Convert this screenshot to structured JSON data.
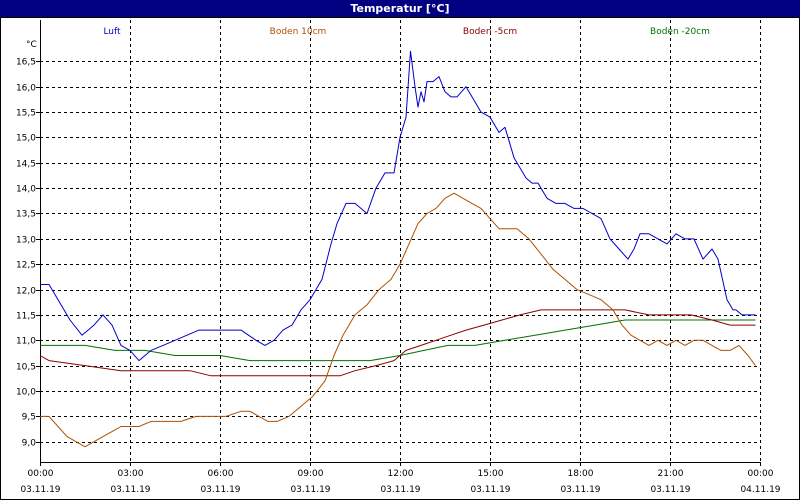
{
  "chart_data": {
    "type": "line",
    "title": "Temperatur [°C]",
    "ylabel": "°C",
    "grid": true,
    "legend": "top",
    "ylim": [
      8.6,
      17.0
    ],
    "xlim_hours": [
      0,
      24
    ],
    "y_ticks": [
      "9,0",
      "9,5",
      "10,0",
      "10,5",
      "11,0",
      "11,5",
      "12,0",
      "12,5",
      "13,0",
      "13,5",
      "14,0",
      "14,5",
      "15,0",
      "15,5",
      "16,0",
      "16,5"
    ],
    "y_tick_values": [
      9.0,
      9.5,
      10.0,
      10.5,
      11.0,
      11.5,
      12.0,
      12.5,
      13.0,
      13.5,
      14.0,
      14.5,
      15.0,
      15.5,
      16.0,
      16.5
    ],
    "x_ticks": [
      {
        "time": "00:00",
        "date": "03.11.19"
      },
      {
        "time": "03:00",
        "date": "03.11.19"
      },
      {
        "time": "06:00",
        "date": "03.11.19"
      },
      {
        "time": "09:00",
        "date": "03.11.19"
      },
      {
        "time": "12:00",
        "date": "03.11.19"
      },
      {
        "time": "15:00",
        "date": "03.11.19"
      },
      {
        "time": "18:00",
        "date": "03.11.19"
      },
      {
        "time": "21:00",
        "date": "03.11.19"
      },
      {
        "time": "00:00",
        "date": "04.11.19"
      }
    ],
    "series": [
      {
        "name": "Luft",
        "color": "#0000cc",
        "x": [
          0,
          0.3,
          0.7,
          1.0,
          1.4,
          1.8,
          2.1,
          2.4,
          2.7,
          3.0,
          3.3,
          3.7,
          4.1,
          4.5,
          4.9,
          5.3,
          5.7,
          6.2,
          6.7,
          7.2,
          7.5,
          7.8,
          8.1,
          8.4,
          8.7,
          9.0,
          9.4,
          9.7,
          9.9,
          10.2,
          10.5,
          10.9,
          11.2,
          11.5,
          11.8,
          12.0,
          12.2,
          12.35,
          12.5,
          12.6,
          12.7,
          12.8,
          12.9,
          13.1,
          13.3,
          13.5,
          13.7,
          13.9,
          14.2,
          14.5,
          14.7,
          15.0,
          15.3,
          15.5,
          15.8,
          16.0,
          16.2,
          16.4,
          16.6,
          16.9,
          17.2,
          17.5,
          17.8,
          18.1,
          18.4,
          18.7,
          19.0,
          19.3,
          19.6,
          19.8,
          20.0,
          20.3,
          20.6,
          20.9,
          21.2,
          21.5,
          21.8,
          22.1,
          22.4,
          22.6,
          22.75,
          22.9,
          23.0,
          23.1,
          23.2,
          23.4,
          23.6,
          23.85
        ],
        "y": [
          12.1,
          12.1,
          11.7,
          11.4,
          11.1,
          11.3,
          11.5,
          11.3,
          10.9,
          10.8,
          10.6,
          10.8,
          10.9,
          11.0,
          11.1,
          11.2,
          11.2,
          11.2,
          11.2,
          11.0,
          10.9,
          11.0,
          11.2,
          11.3,
          11.6,
          11.8,
          12.2,
          12.9,
          13.3,
          13.7,
          13.7,
          13.5,
          14.0,
          14.3,
          14.3,
          15.0,
          15.4,
          16.7,
          16.0,
          15.6,
          15.9,
          15.7,
          16.1,
          16.1,
          16.2,
          15.9,
          15.8,
          15.8,
          16.0,
          15.7,
          15.5,
          15.4,
          15.1,
          15.2,
          14.6,
          14.4,
          14.2,
          14.1,
          14.1,
          13.8,
          13.7,
          13.7,
          13.6,
          13.6,
          13.5,
          13.4,
          13.0,
          12.8,
          12.6,
          12.8,
          13.1,
          13.1,
          13.0,
          12.9,
          13.1,
          13.0,
          13.0,
          12.6,
          12.8,
          12.6,
          12.2,
          11.8,
          11.7,
          11.6,
          11.6,
          11.5,
          11.5,
          11.5
        ]
      },
      {
        "name": "Boden 10cm",
        "color": "#b05000",
        "x": [
          0,
          0.3,
          0.6,
          0.9,
          1.2,
          1.5,
          1.8,
          2.1,
          2.4,
          2.7,
          3.0,
          3.3,
          3.7,
          4.2,
          4.7,
          5.2,
          5.7,
          6.2,
          6.7,
          7.0,
          7.3,
          7.6,
          7.9,
          8.3,
          8.7,
          9.1,
          9.5,
          9.8,
          10.1,
          10.5,
          10.9,
          11.3,
          11.7,
          12.0,
          12.3,
          12.6,
          12.9,
          13.2,
          13.5,
          13.8,
          14.1,
          14.4,
          14.7,
          15.0,
          15.3,
          15.6,
          15.9,
          16.3,
          16.7,
          17.1,
          17.5,
          17.9,
          18.3,
          18.7,
          19.1,
          19.4,
          19.7,
          20.0,
          20.3,
          20.6,
          20.9,
          21.2,
          21.5,
          21.8,
          22.1,
          22.4,
          22.7,
          23.0,
          23.3,
          23.6,
          23.85
        ],
        "y": [
          9.5,
          9.5,
          9.3,
          9.1,
          9.0,
          8.9,
          9.0,
          9.1,
          9.2,
          9.3,
          9.3,
          9.3,
          9.4,
          9.4,
          9.4,
          9.5,
          9.5,
          9.5,
          9.6,
          9.6,
          9.5,
          9.4,
          9.4,
          9.5,
          9.7,
          9.9,
          10.2,
          10.7,
          11.1,
          11.5,
          11.7,
          12.0,
          12.2,
          12.5,
          12.9,
          13.3,
          13.5,
          13.6,
          13.8,
          13.9,
          13.8,
          13.7,
          13.6,
          13.4,
          13.2,
          13.2,
          13.2,
          13.0,
          12.7,
          12.4,
          12.2,
          12.0,
          11.9,
          11.8,
          11.6,
          11.3,
          11.1,
          11.0,
          10.9,
          11.0,
          10.9,
          11.0,
          10.9,
          11.0,
          11.0,
          10.9,
          10.8,
          10.8,
          10.9,
          10.7,
          10.5
        ]
      },
      {
        "name": "Boden -5cm",
        "color": "#8b0000",
        "x": [
          0,
          0.3,
          1.5,
          2.7,
          3.0,
          5.0,
          5.7,
          6.5,
          8.0,
          9.0,
          10.0,
          10.5,
          11.2,
          11.8,
          12.2,
          12.7,
          13.2,
          13.7,
          14.2,
          14.8,
          15.4,
          16.0,
          16.7,
          17.5,
          18.5,
          19.5,
          20.3,
          21.0,
          21.7,
          22.4,
          23.0,
          23.85
        ],
        "y": [
          10.7,
          10.6,
          10.5,
          10.4,
          10.4,
          10.4,
          10.3,
          10.3,
          10.3,
          10.3,
          10.3,
          10.4,
          10.5,
          10.6,
          10.8,
          10.9,
          11.0,
          11.1,
          11.2,
          11.3,
          11.4,
          11.5,
          11.6,
          11.6,
          11.6,
          11.6,
          11.5,
          11.5,
          11.5,
          11.4,
          11.3,
          11.3
        ]
      },
      {
        "name": "Boden -20cm",
        "color": "#007000",
        "x": [
          0,
          1.5,
          2.5,
          3.5,
          4.5,
          6.0,
          7.0,
          8.0,
          9.5,
          11.0,
          12.0,
          12.8,
          13.6,
          14.5,
          15.5,
          16.5,
          17.5,
          18.5,
          19.5,
          20.5,
          22.0,
          23.85
        ],
        "y": [
          10.9,
          10.9,
          10.8,
          10.8,
          10.7,
          10.7,
          10.6,
          10.6,
          10.6,
          10.6,
          10.7,
          10.8,
          10.9,
          10.9,
          11.0,
          11.1,
          11.2,
          11.3,
          11.4,
          11.4,
          11.4,
          11.4
        ]
      }
    ]
  }
}
